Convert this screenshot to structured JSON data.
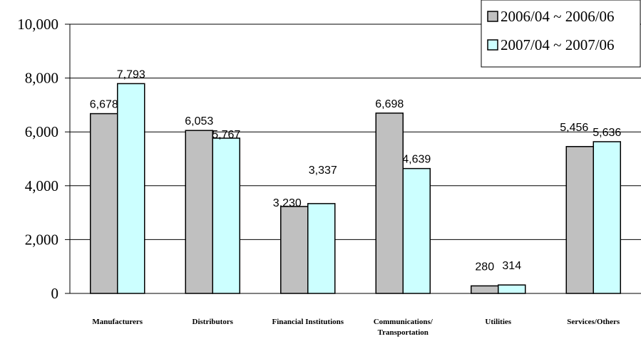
{
  "chart_data": {
    "type": "bar",
    "title": "",
    "xlabel": "",
    "ylabel": "",
    "ylim": [
      0,
      10000
    ],
    "yticks": [
      0,
      2000,
      4000,
      6000,
      8000,
      10000
    ],
    "ytick_labels": [
      "0",
      "2,000",
      "4,000",
      "6,000",
      "8,000",
      "10,000"
    ],
    "grid": true,
    "legend": "top-right",
    "categories": [
      [
        "Manufacturers"
      ],
      [
        "Distributors"
      ],
      [
        "Financial Institutions"
      ],
      [
        "Communications/",
        "Transportation"
      ],
      [
        "Utilities"
      ],
      [
        "Services/Others"
      ]
    ],
    "series": [
      {
        "name": "2006/04 ~ 2006/06",
        "color": "#c0c0c0",
        "values": [
          6678,
          6053,
          3230,
          6698,
          280,
          5456
        ],
        "labels": [
          "6,678",
          "6,053",
          "3,230",
          "6,698",
          "280",
          "5,456"
        ]
      },
      {
        "name": "2007/04 ~ 2007/06",
        "color": "#ccffff",
        "values": [
          7793,
          5767,
          3337,
          4639,
          314,
          5636
        ],
        "labels": [
          "7,793",
          "5,767",
          "3,337",
          "4,639",
          "314",
          "5,636"
        ]
      }
    ]
  }
}
